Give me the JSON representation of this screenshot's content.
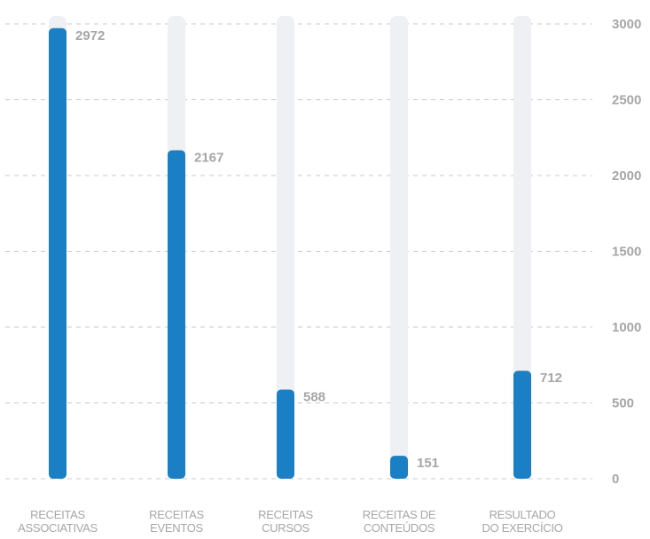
{
  "chart_data": {
    "type": "bar",
    "categories": [
      "RECEITAS ASSOCIATIVAS",
      "RECEITAS EVENTOS",
      "RECEITAS CURSOS",
      "RECEITAS DE CONTEÚDOS",
      "RESULTADO DO EXERCÍCIO"
    ],
    "category_lines": [
      [
        "RECEITAS",
        "ASSOCIATIVAS"
      ],
      [
        "RECEITAS",
        "EVENTOS"
      ],
      [
        "RECEITAS",
        "CURSOS"
      ],
      [
        "RECEITAS DE",
        "CONTEÚDOS"
      ],
      [
        "RESULTADO",
        "DO EXERCÍCIO"
      ]
    ],
    "values": [
      2972,
      2167,
      588,
      151,
      712
    ],
    "ylim": [
      0,
      3000
    ],
    "yticks": [
      0,
      500,
      1000,
      1500,
      2000,
      2500,
      3000
    ],
    "y_axis_side": "right",
    "grid": true,
    "data_labels": true,
    "colors": {
      "bar": "#1a7fc4",
      "track": "#eef0f3",
      "text": "#a6a6a6",
      "grid": "#c8c8c8"
    }
  }
}
